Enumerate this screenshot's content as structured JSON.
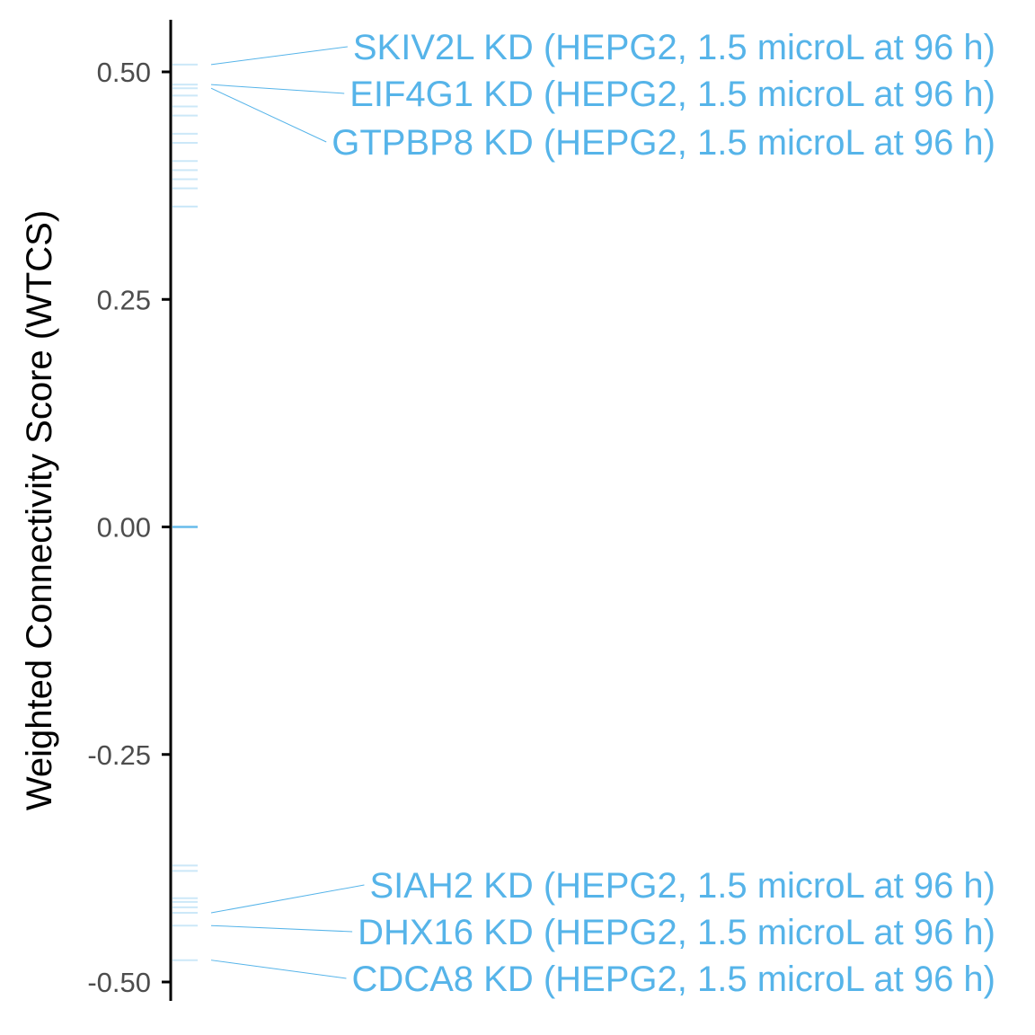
{
  "chart_data": {
    "type": "scatter",
    "title": "",
    "xlabel": "",
    "ylabel": "Weighted Connectivity Score (WTCS)",
    "ylim": [
      -0.52,
      0.555
    ],
    "yticks": [
      0.5,
      0.25,
      0.0,
      -0.25,
      -0.5
    ],
    "ytick_labels": [
      "0.50",
      "0.25",
      "0.00",
      "-0.25",
      "-0.50"
    ],
    "grid": false,
    "legend": "none",
    "colors": {
      "points": "#56b4e9",
      "labels": "#56b4e9",
      "axis": "#000000",
      "tick_labels": "#4d4d4d"
    },
    "points": [
      0.508,
      0.486,
      0.482,
      0.474,
      0.462,
      0.452,
      0.432,
      0.422,
      0.402,
      0.392,
      0.382,
      0.372,
      0.352,
      0.0,
      -0.372,
      -0.378,
      -0.408,
      -0.412,
      -0.418,
      -0.424,
      -0.438,
      -0.476
    ],
    "labeled_points": [
      {
        "label": "SKIV2L KD (HEPG2, 1.5 microL at 96 h)",
        "y": 0.508
      },
      {
        "label": "EIF4G1 KD (HEPG2, 1.5 microL at 96 h)",
        "y": 0.486
      },
      {
        "label": "GTPBP8 KD (HEPG2, 1.5 microL at 96 h)",
        "y": 0.482
      },
      {
        "label": "SIAH2 KD (HEPG2, 1.5 microL at 96 h)",
        "y": -0.424
      },
      {
        "label": "DHX16 KD (HEPG2, 1.5 microL at 96 h)",
        "y": -0.438
      },
      {
        "label": "CDCA8 KD (HEPG2, 1.5 microL at 96 h)",
        "y": -0.476
      }
    ]
  }
}
